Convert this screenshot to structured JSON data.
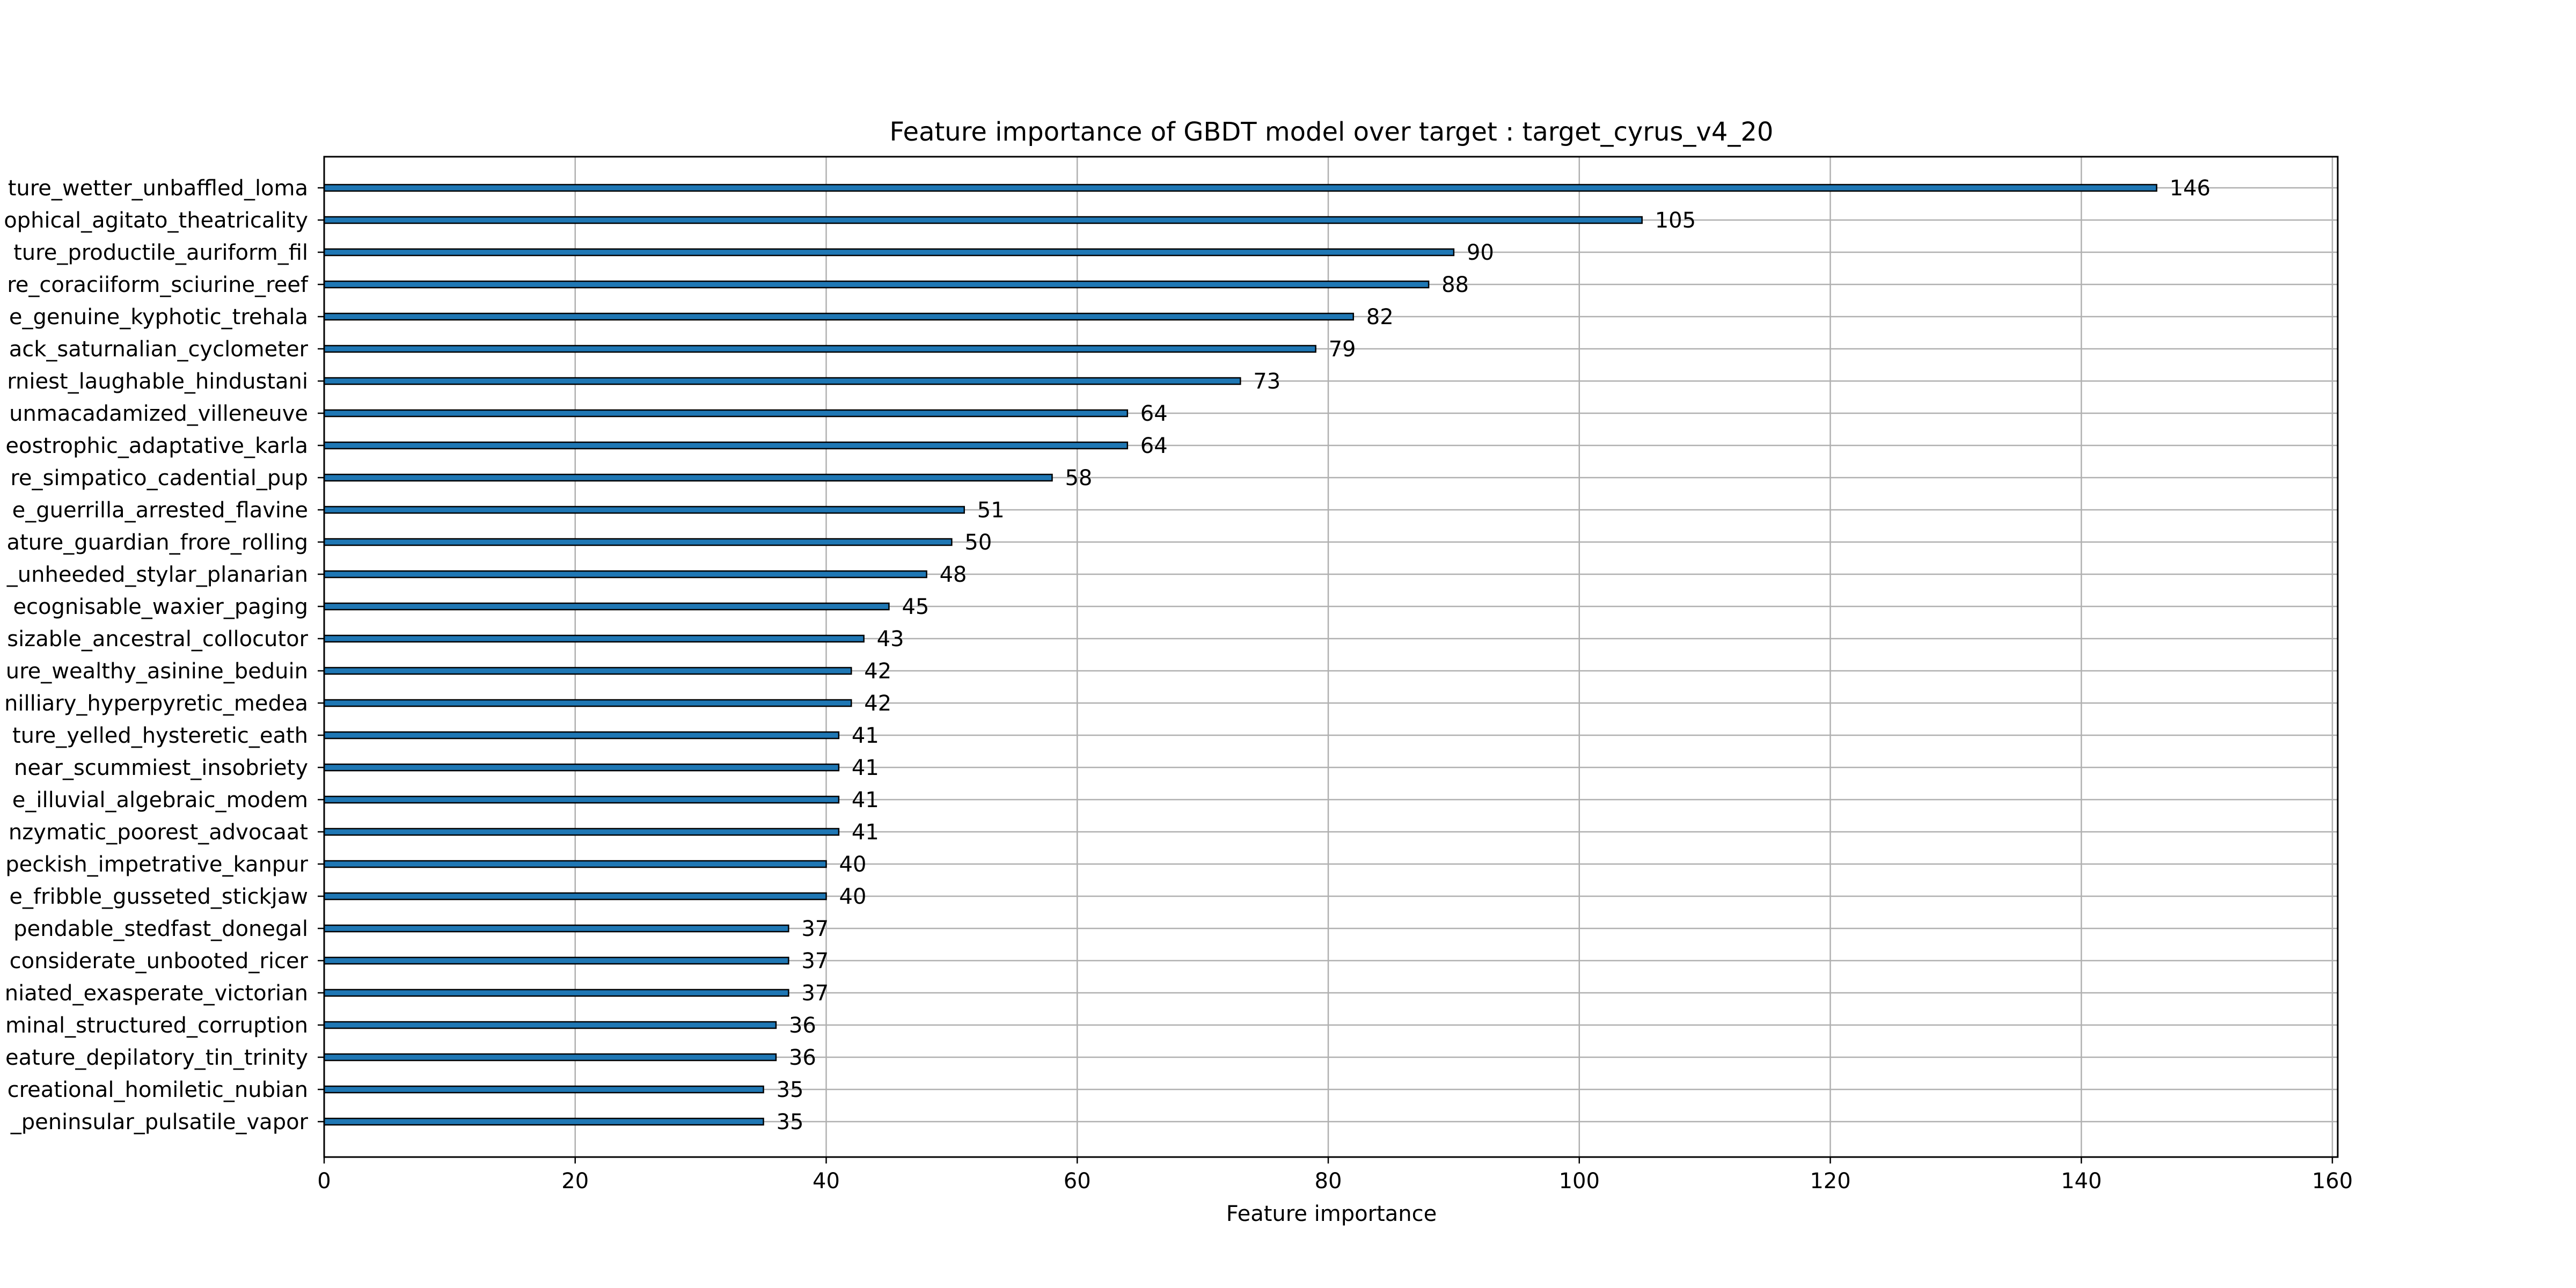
{
  "chart_data": {
    "type": "bar",
    "orientation": "horizontal",
    "title": "Feature importance of GBDT model over target : target_cyrus_v4_20",
    "xlabel": "Feature importance",
    "ylabel": "",
    "xlim": [
      0,
      160
    ],
    "xticks": [
      0,
      20,
      40,
      60,
      80,
      100,
      120,
      140,
      160
    ],
    "grid": true,
    "bar_color": "#1f77b4",
    "categories": [
      "ture_wetter_unbaffled_loma",
      "ophical_agitato_theatricality",
      "ture_productile_auriform_fil",
      "re_coraciiform_sciurine_reef",
      "e_genuine_kyphotic_trehala",
      "ack_saturnalian_cyclometer",
      "rniest_laughable_hindustani",
      "unmacadamized_villeneuve",
      "eostrophic_adaptative_karla",
      "re_simpatico_cadential_pup",
      "e_guerrilla_arrested_flavine",
      "ature_guardian_frore_rolling",
      "_unheeded_stylar_planarian",
      "ecognisable_waxier_paging",
      "sizable_ancestral_collocutor",
      "ure_wealthy_asinine_beduin",
      "nilliary_hyperpyretic_medea",
      "ture_yelled_hysteretic_eath",
      "near_scummiest_insobriety",
      "e_illuvial_algebraic_modem",
      "nzymatic_poorest_advocaat",
      "peckish_impetrative_kanpur",
      "e_fribble_gusseted_stickjaw",
      "pendable_stedfast_donegal",
      "considerate_unbooted_ricer",
      "niated_exasperate_victorian",
      "minal_structured_corruption",
      "eature_depilatory_tin_trinity",
      "creational_homiletic_nubian",
      "_peninsular_pulsatile_vapor"
    ],
    "values": [
      146,
      105,
      90,
      88,
      82,
      79,
      73,
      64,
      64,
      58,
      51,
      50,
      48,
      45,
      43,
      42,
      42,
      41,
      41,
      41,
      41,
      40,
      40,
      37,
      37,
      37,
      36,
      36,
      35,
      35
    ]
  }
}
